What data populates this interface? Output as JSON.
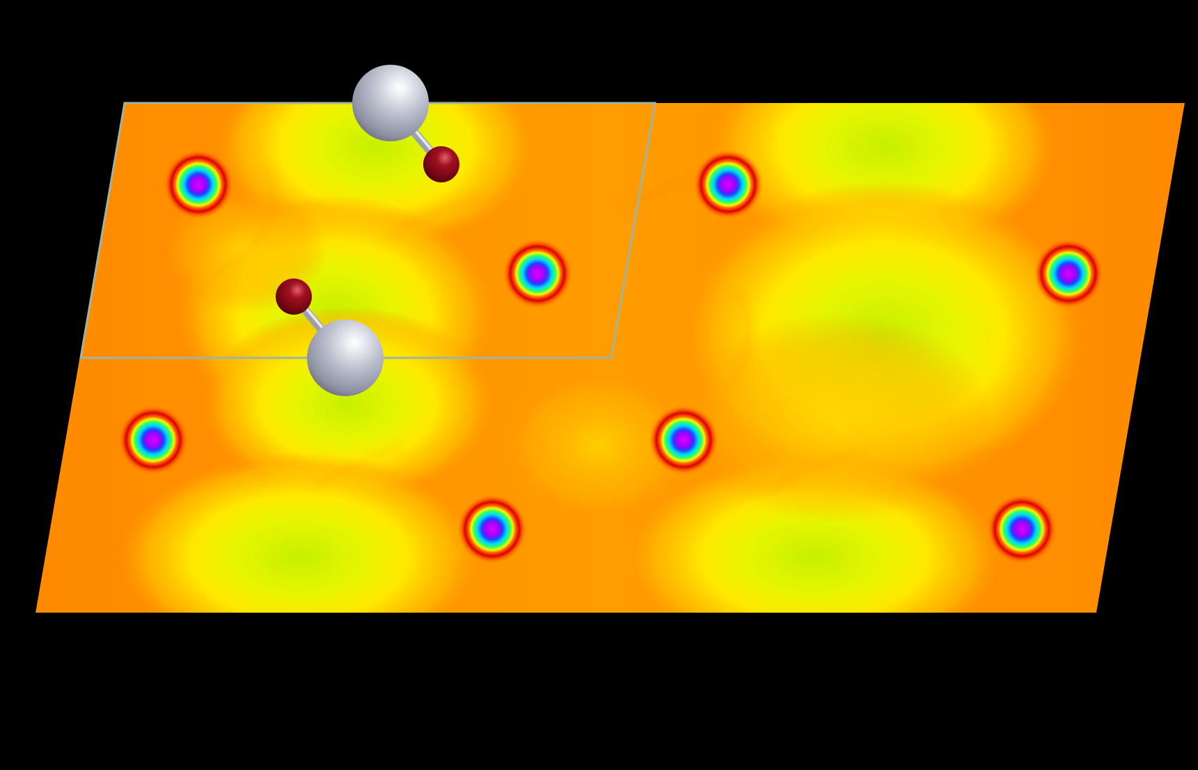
{
  "image": {
    "kind": "charge-density-slice-render",
    "background_color": "#000000",
    "colormap": [
      "#ff8c00",
      "#ffb000",
      "#ffe000",
      "#ffff10",
      "#c8f000"
    ],
    "density_peak_ring_colors": [
      "#ff00ff",
      "#0040ff",
      "#00e0ff",
      "#40ff40",
      "#ffff00",
      "#ff4000",
      "#cc0000"
    ],
    "unit_cell_outline_color": "#9fb4a6",
    "atoms": {
      "large_atom_color": "#c8cad6",
      "small_atom_color": "#8b0a14",
      "bond_color": "#b0b6c4"
    }
  }
}
